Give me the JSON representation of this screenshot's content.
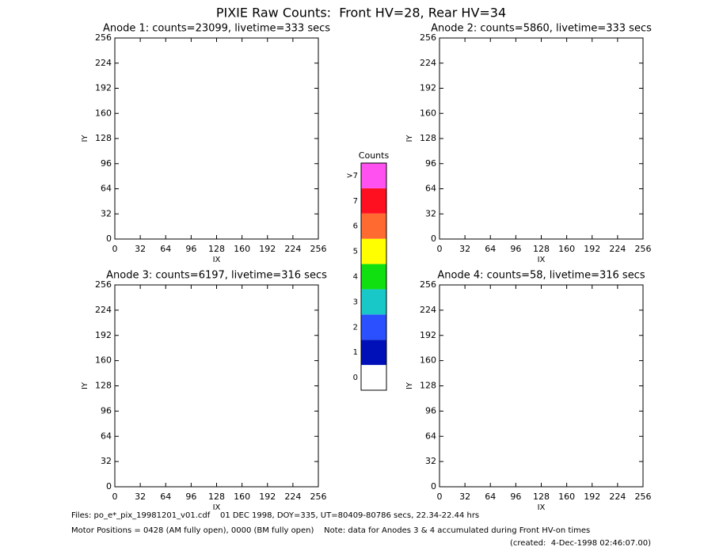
{
  "title": "PIXIE Raw Counts:  Front HV=28, Rear HV=34",
  "chart_data": [
    {
      "type": "heatmap",
      "title": "Anode 1: counts=23099, livetime=333 secs",
      "xlabel": "IX",
      "ylabel": "IY",
      "xlim": [
        0,
        256
      ],
      "ylim": [
        0,
        256
      ],
      "xticks": [
        0,
        32,
        64,
        96,
        128,
        160,
        192,
        224,
        256
      ],
      "yticks": [
        0,
        32,
        64,
        96,
        128,
        160,
        192,
        224,
        256
      ]
    },
    {
      "type": "heatmap",
      "title": "Anode 2: counts=5860, livetime=333 secs",
      "xlabel": "IX",
      "ylabel": "IY",
      "xlim": [
        0,
        256
      ],
      "ylim": [
        0,
        256
      ],
      "xticks": [
        0,
        32,
        64,
        96,
        128,
        160,
        192,
        224,
        256
      ],
      "yticks": [
        0,
        32,
        64,
        96,
        128,
        160,
        192,
        224,
        256
      ]
    },
    {
      "type": "heatmap",
      "title": "Anode 3: counts=6197, livetime=316 secs",
      "xlabel": "IX",
      "ylabel": "IY",
      "xlim": [
        0,
        256
      ],
      "ylim": [
        0,
        256
      ],
      "xticks": [
        0,
        32,
        64,
        96,
        128,
        160,
        192,
        224,
        256
      ],
      "yticks": [
        0,
        32,
        64,
        96,
        128,
        160,
        192,
        224,
        256
      ]
    },
    {
      "type": "heatmap",
      "title": "Anode 4: counts=58, livetime=316 secs",
      "xlabel": "IX",
      "ylabel": "IY",
      "xlim": [
        0,
        256
      ],
      "ylim": [
        0,
        256
      ],
      "xticks": [
        0,
        32,
        64,
        96,
        128,
        160,
        192,
        224,
        256
      ],
      "yticks": [
        0,
        32,
        64,
        96,
        128,
        160,
        192,
        224,
        256
      ]
    }
  ],
  "colorbar": {
    "title": "Counts",
    "labels": [
      "0",
      "1",
      "2",
      "3",
      "4",
      "5",
      "6",
      "7",
      ">7"
    ],
    "colors": [
      "#ffffff",
      "#0010b8",
      "#2a50ff",
      "#18c8c8",
      "#10e010",
      "#ffff00",
      "#ff6a30",
      "#ff1020",
      "#ff50f0"
    ]
  },
  "footer": [
    "Files: po_e*_pix_19981201_v01.cdf    01 DEC 1998, DOY=335, UT=80409-80786 secs, 22.34-22.44 hrs",
    "Motor Positions = 0428 (AM fully open), 0000 (BM fully open)    Note: data for Anodes 3 & 4 accumulated during Front HV-on times",
    "(created:  4-Dec-1998 02:46:07.00)"
  ]
}
